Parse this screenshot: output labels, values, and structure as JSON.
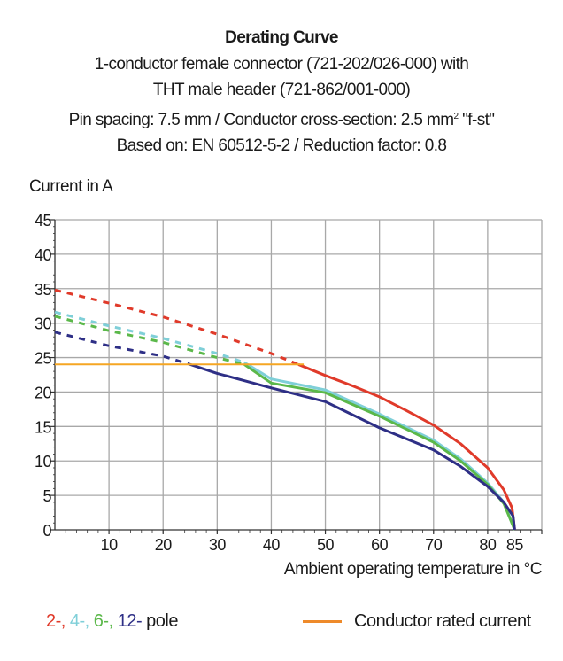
{
  "chart_data": {
    "type": "line",
    "title": "Derating Curve",
    "subtitle_lines": [
      "1-conductor female connector (721-202/026-000) with",
      "THT male header (721-862/001-000)",
      "Pin spacing: 7.5 mm / Conductor cross-section: 2.5 mm",
      "\"f-st\"",
      "Based on: EN 60512-5-2 / Reduction factor: 0.8"
    ],
    "superscript": "2",
    "ylabel": "Current in A",
    "xlabel": "Ambient operating temperature in °C",
    "xlim": [
      0,
      90
    ],
    "ylim": [
      0,
      45
    ],
    "xticks": [
      10,
      20,
      30,
      40,
      50,
      60,
      70,
      80,
      85
    ],
    "xgrid": [
      10,
      20,
      30,
      40,
      50,
      60,
      70,
      80,
      90
    ],
    "yticks": [
      0,
      5,
      10,
      15,
      20,
      25,
      30,
      35,
      40,
      45
    ],
    "grid": true,
    "legend_placement": "bottom",
    "series": [
      {
        "name": "2-",
        "color": "#e03a2a",
        "extrapolated": [
          [
            0,
            34.8
          ],
          [
            10,
            32.9
          ],
          [
            20,
            30.9
          ],
          [
            30,
            28.4
          ],
          [
            40,
            25.6
          ],
          [
            45,
            24
          ]
        ],
        "curve": [
          [
            45,
            24
          ],
          [
            50,
            22.4
          ],
          [
            55,
            20.9
          ],
          [
            60,
            19.3
          ],
          [
            65,
            17.3
          ],
          [
            70,
            15.2
          ],
          [
            75,
            12.5
          ],
          [
            80,
            9.0
          ],
          [
            83,
            5.8
          ],
          [
            84.5,
            3.2
          ],
          [
            85,
            0
          ]
        ]
      },
      {
        "name": "4-",
        "color": "#7fcfd8",
        "extrapolated": [
          [
            0,
            31.6
          ],
          [
            10,
            29.6
          ],
          [
            20,
            27.8
          ],
          [
            30,
            25.6
          ],
          [
            35,
            24.3
          ]
        ],
        "curve": [
          [
            35,
            24.3
          ],
          [
            40,
            21.9
          ],
          [
            50,
            20.3
          ],
          [
            60,
            16.8
          ],
          [
            70,
            13.0
          ],
          [
            75,
            10.3
          ],
          [
            80,
            6.8
          ],
          [
            83,
            4.0
          ],
          [
            85,
            0
          ]
        ]
      },
      {
        "name": "6-",
        "color": "#5bb84a",
        "extrapolated": [
          [
            0,
            31.0
          ],
          [
            10,
            28.9
          ],
          [
            20,
            27.2
          ],
          [
            30,
            25.0
          ],
          [
            35,
            24.0
          ]
        ],
        "curve": [
          [
            35,
            24.0
          ],
          [
            40,
            21.3
          ],
          [
            50,
            19.9
          ],
          [
            60,
            16.5
          ],
          [
            70,
            12.7
          ],
          [
            75,
            10.0
          ],
          [
            80,
            6.6
          ],
          [
            83,
            3.8
          ],
          [
            85,
            0
          ]
        ]
      },
      {
        "name": "12-",
        "color": "#2e2f86",
        "extrapolated": [
          [
            0,
            28.7
          ],
          [
            10,
            26.7
          ],
          [
            20,
            25.2
          ],
          [
            25,
            24.0
          ]
        ],
        "curve": [
          [
            25,
            24.0
          ],
          [
            30,
            22.7
          ],
          [
            40,
            20.6
          ],
          [
            50,
            18.6
          ],
          [
            60,
            14.8
          ],
          [
            70,
            11.6
          ],
          [
            75,
            9.2
          ],
          [
            80,
            6.3
          ],
          [
            83,
            4.0
          ],
          [
            84.7,
            2.0
          ],
          [
            85,
            0
          ]
        ]
      },
      {
        "name": "Conductor rated current",
        "color": "#f5a623",
        "curve": [
          [
            0,
            24
          ],
          [
            46,
            24
          ]
        ]
      }
    ],
    "legend": {
      "poles": [
        {
          "text": "2-,",
          "color": "#e03a2a"
        },
        {
          "text": " 4-,",
          "color": "#7fcfd8"
        },
        {
          "text": " 6-,",
          "color": "#5bb84a"
        },
        {
          "text": " 12-",
          "color": "#2e2f86"
        },
        {
          "text": " pole",
          "color": "#1a1a1a"
        }
      ],
      "rated_label": "Conductor rated current",
      "rated_color": "#ee8a2a"
    }
  }
}
